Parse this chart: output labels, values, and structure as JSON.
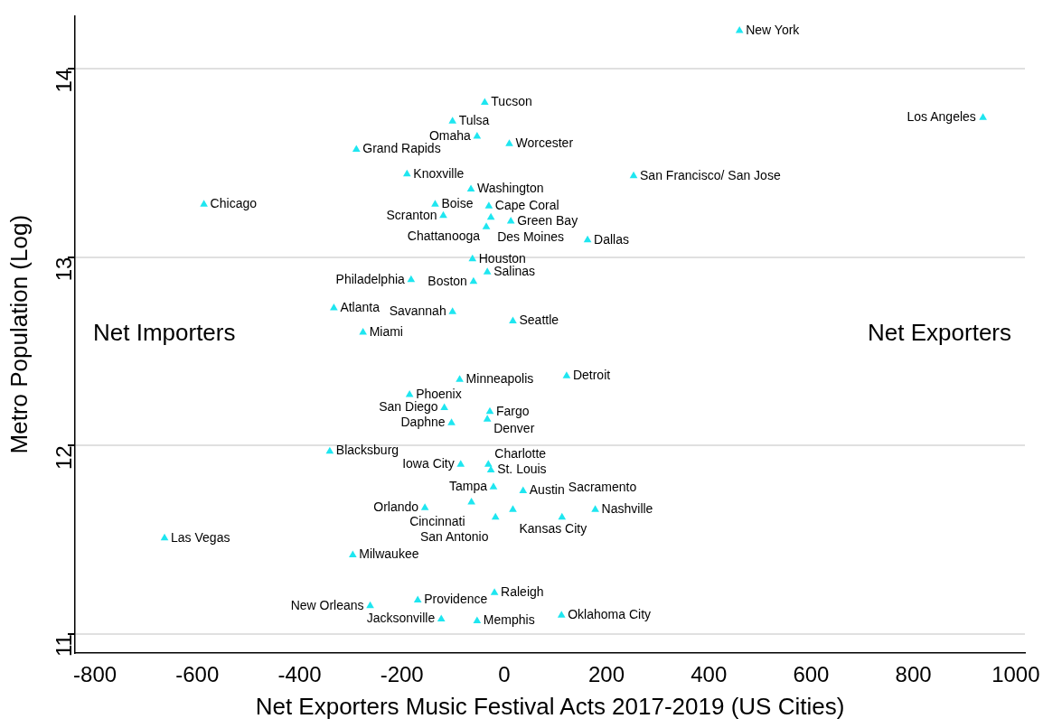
{
  "chart_data": {
    "type": "scatter",
    "xlabel": "Net Exporters Music Festival Acts 2017-2019 (US Cities)",
    "ylabel": "Metro Population (Log)",
    "annotations": [
      "Net Importers",
      "Net Exporters"
    ],
    "xlim": [
      -839,
      1018
    ],
    "xticks": [
      -800,
      -600,
      -400,
      -200,
      0,
      200,
      400,
      600,
      800,
      1000
    ],
    "ylim": [
      10.9,
      14.28
    ],
    "yticks": [
      11,
      12,
      13,
      14
    ],
    "grid": "y",
    "marker": "triangle",
    "legend": false,
    "series": [
      {
        "color": "#1ee6f0",
        "x": [
          460,
          936,
          -38,
          -101,
          -53,
          10,
          -289,
          -190,
          253,
          -65,
          -587,
          -135,
          -30,
          -119,
          -26,
          13,
          -35,
          163,
          -62,
          -33,
          -182,
          -60,
          -333,
          -101,
          17,
          -276,
          122,
          -87,
          -185,
          -117,
          -28,
          -33,
          -103,
          -341,
          -85,
          -31,
          -26,
          -21,
          37,
          -64,
          -155,
          17,
          178,
          -17,
          113,
          -664,
          -296,
          -19,
          -169,
          -262,
          112,
          -123,
          -53
        ],
        "values": [
          14.2,
          13.74,
          13.82,
          13.72,
          13.64,
          13.6,
          13.57,
          13.44,
          13.43,
          13.36,
          13.28,
          13.28,
          13.27,
          13.22,
          13.21,
          13.19,
          13.16,
          13.09,
          12.99,
          12.92,
          12.88,
          12.87,
          12.73,
          12.71,
          12.66,
          12.6,
          12.37,
          12.35,
          12.27,
          12.2,
          12.18,
          12.14,
          12.12,
          11.97,
          11.9,
          11.9,
          11.87,
          11.78,
          11.76,
          11.7,
          11.67,
          11.66,
          11.66,
          11.62,
          11.62,
          11.51,
          11.42,
          11.22,
          11.18,
          11.15,
          11.1,
          11.08,
          11.07
        ],
        "value_labels": [
          "New York",
          "Los Angeles",
          "Tucson",
          "Tulsa",
          "Omaha",
          "Worcester",
          "Grand Rapids",
          "Knoxville",
          "San Francisco/ San Jose",
          "Washington",
          "Chicago",
          "Boise",
          "Cape Coral",
          "Scranton",
          "Des Moines",
          "Green Bay",
          "Chattanooga",
          "Dallas",
          "Houston",
          "Salinas",
          "Philadelphia",
          "Boston",
          "Atlanta",
          "Savannah",
          "Seattle",
          "Miami",
          "Detroit",
          "Minneapolis",
          "Phoenix",
          "San Diego",
          "Fargo",
          "Denver",
          "Daphne",
          "Blacksburg",
          "Iowa City",
          "Charlotte",
          "St. Louis",
          "Tampa",
          "Austin",
          "Cincinnati",
          "Orlando",
          "Kansas City",
          "Nashville",
          "San Antonio",
          "Sacramento",
          "Las Vegas",
          "Milwaukee",
          "Raleigh",
          "Providence",
          "New Orleans",
          "Oklahoma City",
          "Jacksonville",
          "Memphis"
        ]
      }
    ]
  }
}
